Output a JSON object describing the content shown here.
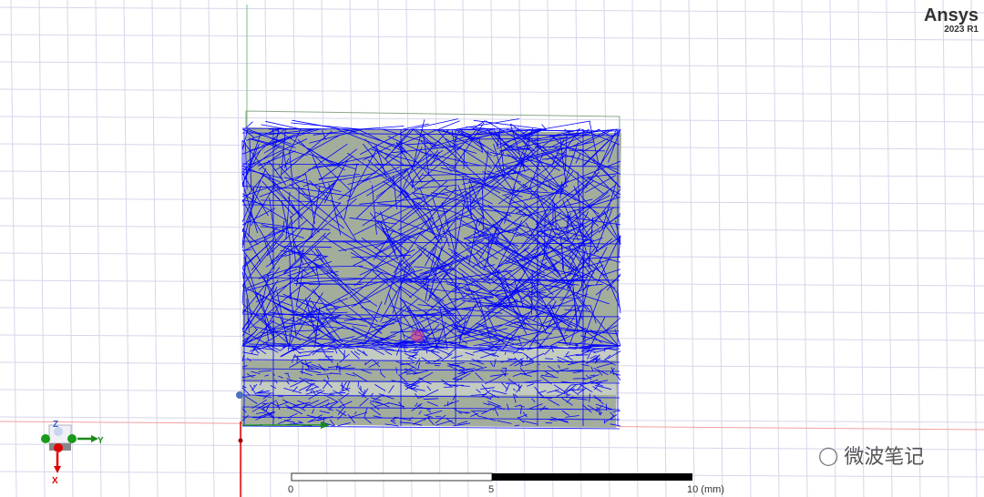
{
  "brand": {
    "name": "Ansys",
    "version": "2023 R1"
  },
  "scale_bar": {
    "labels": [
      "0",
      "5",
      "10 (mm)"
    ]
  },
  "triad": {
    "x_label": "X",
    "y_label": "Y",
    "z_label": "Z"
  },
  "watermark": {
    "text": "微波笔记",
    "icon": "wechat-icon"
  },
  "colors": {
    "mesh": "#0000ff",
    "model_fill": "#a3ad9c",
    "grid": "#d6d6ea",
    "x_axis": "#e00000",
    "y_axis": "#1a8a1a"
  }
}
